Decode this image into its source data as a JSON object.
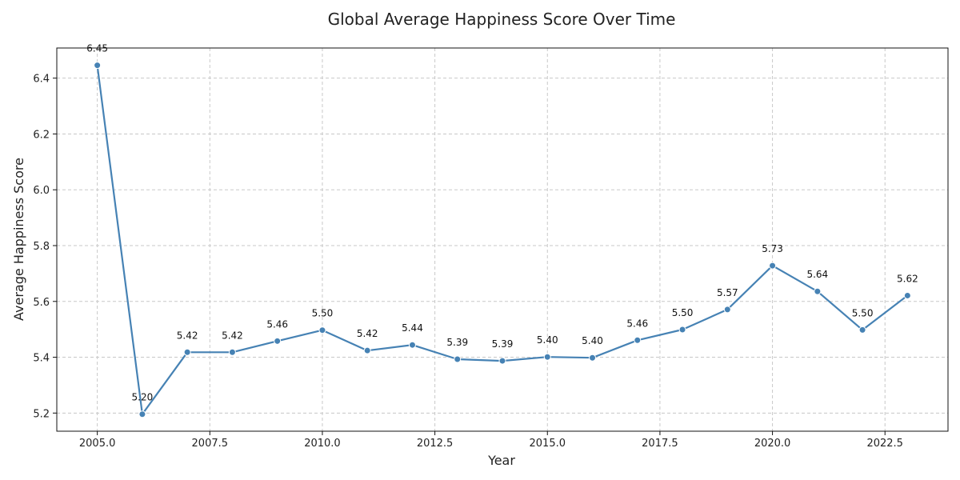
{
  "chart_data": {
    "type": "line",
    "title": "Global Average Happiness Score Over Time",
    "xlabel": "Year",
    "ylabel": "Average Happiness Score",
    "xlim": [
      2004.1,
      2023.9
    ],
    "ylim": [
      5.135,
      6.508
    ],
    "x_ticks": [
      2005.0,
      2007.5,
      2010.0,
      2012.5,
      2015.0,
      2017.5,
      2020.0,
      2022.5
    ],
    "x_tick_labels": [
      "2005.0",
      "2007.5",
      "2010.0",
      "2012.5",
      "2015.0",
      "2017.5",
      "2020.0",
      "2022.5"
    ],
    "y_ticks": [
      5.2,
      5.4,
      5.6,
      5.8,
      6.0,
      6.2,
      6.4
    ],
    "y_tick_labels": [
      "5.2",
      "5.4",
      "5.6",
      "5.8",
      "6.0",
      "6.2",
      "6.4"
    ],
    "grid": true,
    "line_color": "#4682b4",
    "series": [
      {
        "x": [
          2005,
          2006,
          2007,
          2008,
          2009,
          2010,
          2011,
          2012,
          2013,
          2014,
          2015,
          2016,
          2017,
          2018,
          2019,
          2020,
          2021,
          2022,
          2023
        ],
        "values": [
          6.446,
          5.196,
          5.418,
          5.418,
          5.458,
          5.497,
          5.424,
          5.444,
          5.393,
          5.387,
          5.401,
          5.398,
          5.461,
          5.499,
          5.571,
          5.728,
          5.636,
          5.498,
          5.621
        ],
        "labels": [
          "6.45",
          "5.20",
          "5.42",
          "5.42",
          "5.46",
          "5.50",
          "5.42",
          "5.44",
          "5.39",
          "5.39",
          "5.40",
          "5.40",
          "5.46",
          "5.50",
          "5.57",
          "5.73",
          "5.64",
          "5.50",
          "5.62"
        ]
      }
    ]
  }
}
